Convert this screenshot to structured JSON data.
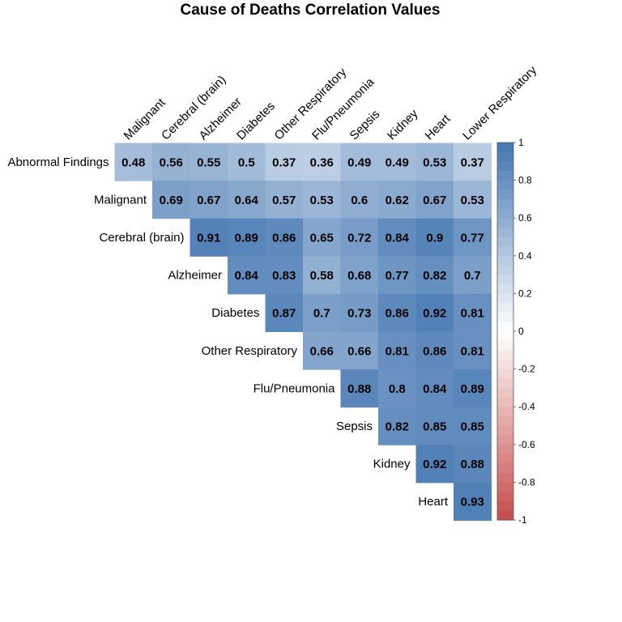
{
  "chart_data": {
    "type": "heatmap",
    "title": "Cause of Deaths Correlation Values",
    "rows": [
      "Abnormal Findings",
      "Malignant",
      "Cerebral (brain)",
      "Alzheimer",
      "Diabetes",
      "Other Respiratory",
      "Flu/Pneumonia",
      "Sepsis",
      "Kidney",
      "Heart"
    ],
    "columns": [
      "Malignant",
      "Cerebral (brain)",
      "Alzheimer",
      "Diabetes",
      "Other Respiratory",
      "Flu/Pneumonia",
      "Sepsis",
      "Kidney",
      "Heart",
      "Lower Respiratory"
    ],
    "values": [
      [
        0.48,
        0.56,
        0.55,
        0.5,
        0.37,
        0.36,
        0.49,
        0.49,
        0.53,
        0.37
      ],
      [
        null,
        0.69,
        0.67,
        0.64,
        0.57,
        0.53,
        0.6,
        0.62,
        0.67,
        0.53
      ],
      [
        null,
        null,
        0.91,
        0.89,
        0.86,
        0.65,
        0.72,
        0.84,
        0.9,
        0.77
      ],
      [
        null,
        null,
        null,
        0.84,
        0.83,
        0.58,
        0.68,
        0.77,
        0.82,
        0.7
      ],
      [
        null,
        null,
        null,
        null,
        0.87,
        0.7,
        0.73,
        0.86,
        0.92,
        0.81
      ],
      [
        null,
        null,
        null,
        null,
        null,
        0.66,
        0.66,
        0.81,
        0.86,
        0.81
      ],
      [
        null,
        null,
        null,
        null,
        null,
        null,
        0.88,
        0.8,
        0.84,
        0.89
      ],
      [
        null,
        null,
        null,
        null,
        null,
        null,
        null,
        0.82,
        0.85,
        0.85
      ],
      [
        null,
        null,
        null,
        null,
        null,
        null,
        null,
        null,
        0.92,
        0.88
      ],
      [
        null,
        null,
        null,
        null,
        null,
        null,
        null,
        null,
        null,
        0.93
      ]
    ],
    "color_scale": {
      "min": -1,
      "max": 1,
      "low_color": "#b2182b",
      "mid_color": "#ffffff",
      "high_color": "#2166ac",
      "ticks": [
        "1",
        "0.8",
        "0.6",
        "0.4",
        "0.2",
        "0",
        "-0.2",
        "-0.4",
        "-0.6",
        "-0.8",
        "-1"
      ]
    },
    "legend_placement": "right",
    "grid": false
  }
}
